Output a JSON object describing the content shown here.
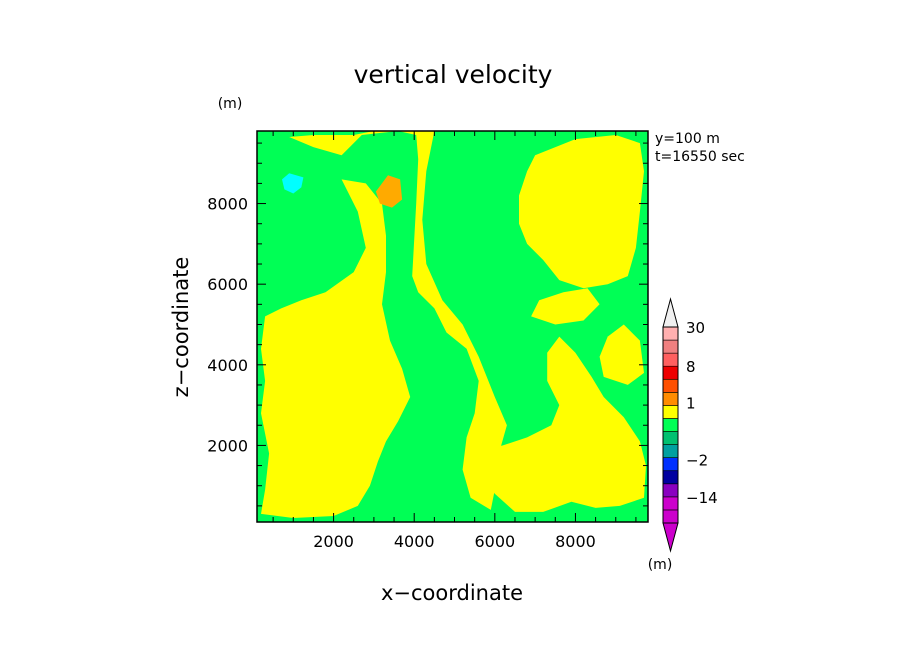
{
  "chart_data": {
    "type": "contour",
    "title": "vertical velocity",
    "xlabel": "x−coordinate",
    "ylabel": "z−coordinate",
    "y_unit_label": "(m)",
    "annotation_lines": [
      "y=100 m",
      "t=16550 sec"
    ],
    "xlim": [
      100,
      9800
    ],
    "ylim": [
      100,
      9800
    ],
    "xticks": [
      2000,
      4000,
      6000,
      8000
    ],
    "yticks": [
      2000,
      4000,
      6000,
      8000
    ],
    "xtick_labels": [
      "2000",
      "4000",
      "6000",
      "8000"
    ],
    "ytick_labels": [
      "2000",
      "4000",
      "6000",
      "8000"
    ],
    "colorbar": {
      "unit_label": "(m)",
      "levels": [
        -30,
        -20,
        -14,
        -8,
        -4,
        -2,
        -1,
        -0.5,
        0.5,
        1,
        2,
        4,
        8,
        14,
        20,
        30
      ],
      "level_labels": [
        {
          "value": 30,
          "text": "30"
        },
        {
          "value": 8,
          "text": "8"
        },
        {
          "value": 1,
          "text": "1"
        },
        {
          "value": -2,
          "text": "−2"
        },
        {
          "value": -14,
          "text": "−14"
        }
      ],
      "colors": [
        "#cc00cc",
        "#cc00cc",
        "#8a00c0",
        "#0000a0",
        "#0030ff",
        "#00a0a0",
        "#00c070",
        "#00ff55",
        "#ffff00",
        "#ff8c00",
        "#ff5000",
        "#ee0000",
        "#ff6060",
        "#f08080",
        "#ffb0b0",
        "#f0f0f0"
      ],
      "extend_colors": {
        "low": "#cc00cc",
        "high": "#f0f0f0"
      }
    },
    "field_colors": {
      "background": "#00ff55",
      "positive_weak": "#ffff00",
      "positive_moderate": "#ffaa00",
      "negative_weak": "#00ffff"
    },
    "regions": [
      {
        "level": "positive_weak",
        "polygon": [
          [
            900,
            9650
          ],
          [
            1500,
            9400
          ],
          [
            2200,
            9200
          ],
          [
            2500,
            9500
          ],
          [
            2700,
            9700
          ],
          [
            3600,
            9800
          ],
          [
            4050,
            9700
          ],
          [
            4100,
            9100
          ],
          [
            4050,
            8000
          ],
          [
            4000,
            7100
          ],
          [
            3950,
            6200
          ],
          [
            4100,
            5800
          ],
          [
            4500,
            5400
          ],
          [
            4800,
            4800
          ],
          [
            5300,
            4400
          ],
          [
            5600,
            3600
          ],
          [
            5500,
            2800
          ],
          [
            5300,
            2200
          ],
          [
            5200,
            1400
          ],
          [
            5400,
            700
          ],
          [
            5900,
            400
          ],
          [
            6000,
            900
          ],
          [
            6100,
            1800
          ],
          [
            6300,
            2500
          ],
          [
            6000,
            3200
          ],
          [
            5600,
            4200
          ],
          [
            5200,
            5000
          ],
          [
            4700,
            5600
          ],
          [
            4300,
            6500
          ],
          [
            4200,
            7600
          ],
          [
            4300,
            8800
          ],
          [
            4500,
            9800
          ],
          [
            3000,
            9800
          ],
          [
            2500,
            9700
          ],
          [
            1500,
            9700
          ]
        ]
      },
      {
        "level": "positive_weak",
        "polygon": [
          [
            2200,
            8600
          ],
          [
            2600,
            7800
          ],
          [
            2800,
            6900
          ],
          [
            2500,
            6300
          ],
          [
            1800,
            5800
          ],
          [
            1200,
            5600
          ],
          [
            700,
            5400
          ],
          [
            300,
            5200
          ],
          [
            200,
            4400
          ],
          [
            300,
            3600
          ],
          [
            200,
            2800
          ],
          [
            400,
            1800
          ],
          [
            300,
            900
          ],
          [
            200,
            300
          ],
          [
            1000,
            200
          ],
          [
            2000,
            250
          ],
          [
            2600,
            500
          ],
          [
            2900,
            1000
          ],
          [
            3100,
            1600
          ],
          [
            3300,
            2100
          ],
          [
            3600,
            2600
          ],
          [
            3900,
            3200
          ],
          [
            3700,
            3900
          ],
          [
            3400,
            4600
          ],
          [
            3200,
            5500
          ],
          [
            3300,
            6300
          ],
          [
            3300,
            7200
          ],
          [
            3200,
            8000
          ],
          [
            2800,
            8500
          ]
        ]
      },
      {
        "level": "positive_weak",
        "polygon": [
          [
            7000,
            9200
          ],
          [
            8000,
            9600
          ],
          [
            9000,
            9700
          ],
          [
            9600,
            9500
          ],
          [
            9700,
            8800
          ],
          [
            9600,
            7800
          ],
          [
            9500,
            6900
          ],
          [
            9300,
            6200
          ],
          [
            8800,
            6000
          ],
          [
            8200,
            5900
          ],
          [
            7600,
            6100
          ],
          [
            7200,
            6600
          ],
          [
            6800,
            7000
          ],
          [
            6600,
            7500
          ],
          [
            6600,
            8200
          ],
          [
            6800,
            8800
          ]
        ]
      },
      {
        "level": "positive_weak",
        "polygon": [
          [
            5500,
            1500
          ],
          [
            6000,
            800
          ],
          [
            6500,
            350
          ],
          [
            7200,
            350
          ],
          [
            7900,
            600
          ],
          [
            8500,
            450
          ],
          [
            9100,
            500
          ],
          [
            9700,
            700
          ],
          [
            9750,
            1500
          ],
          [
            9600,
            2100
          ],
          [
            9200,
            2700
          ],
          [
            8700,
            3200
          ],
          [
            8400,
            3700
          ],
          [
            8000,
            4300
          ],
          [
            7600,
            4700
          ],
          [
            7300,
            4300
          ],
          [
            7300,
            3600
          ],
          [
            7600,
            3000
          ],
          [
            7400,
            2500
          ],
          [
            6800,
            2200
          ],
          [
            6200,
            2000
          ],
          [
            5800,
            1900
          ]
        ]
      },
      {
        "level": "positive_weak",
        "polygon": [
          [
            6900,
            5200
          ],
          [
            7500,
            5000
          ],
          [
            8200,
            5100
          ],
          [
            8600,
            5500
          ],
          [
            8300,
            5900
          ],
          [
            7700,
            5800
          ],
          [
            7100,
            5600
          ]
        ]
      },
      {
        "level": "positive_weak",
        "polygon": [
          [
            8700,
            3700
          ],
          [
            9300,
            3500
          ],
          [
            9700,
            3800
          ],
          [
            9600,
            4600
          ],
          [
            9200,
            5000
          ],
          [
            8800,
            4700
          ],
          [
            8600,
            4200
          ]
        ]
      },
      {
        "level": "positive_moderate",
        "polygon": [
          [
            3050,
            8300
          ],
          [
            3350,
            8700
          ],
          [
            3650,
            8600
          ],
          [
            3700,
            8100
          ],
          [
            3450,
            7900
          ],
          [
            3150,
            8000
          ]
        ]
      },
      {
        "level": "negative_weak",
        "polygon": [
          [
            720,
            8600
          ],
          [
            900,
            8750
          ],
          [
            1250,
            8650
          ],
          [
            1200,
            8400
          ],
          [
            1000,
            8250
          ],
          [
            780,
            8350
          ]
        ]
      }
    ]
  }
}
